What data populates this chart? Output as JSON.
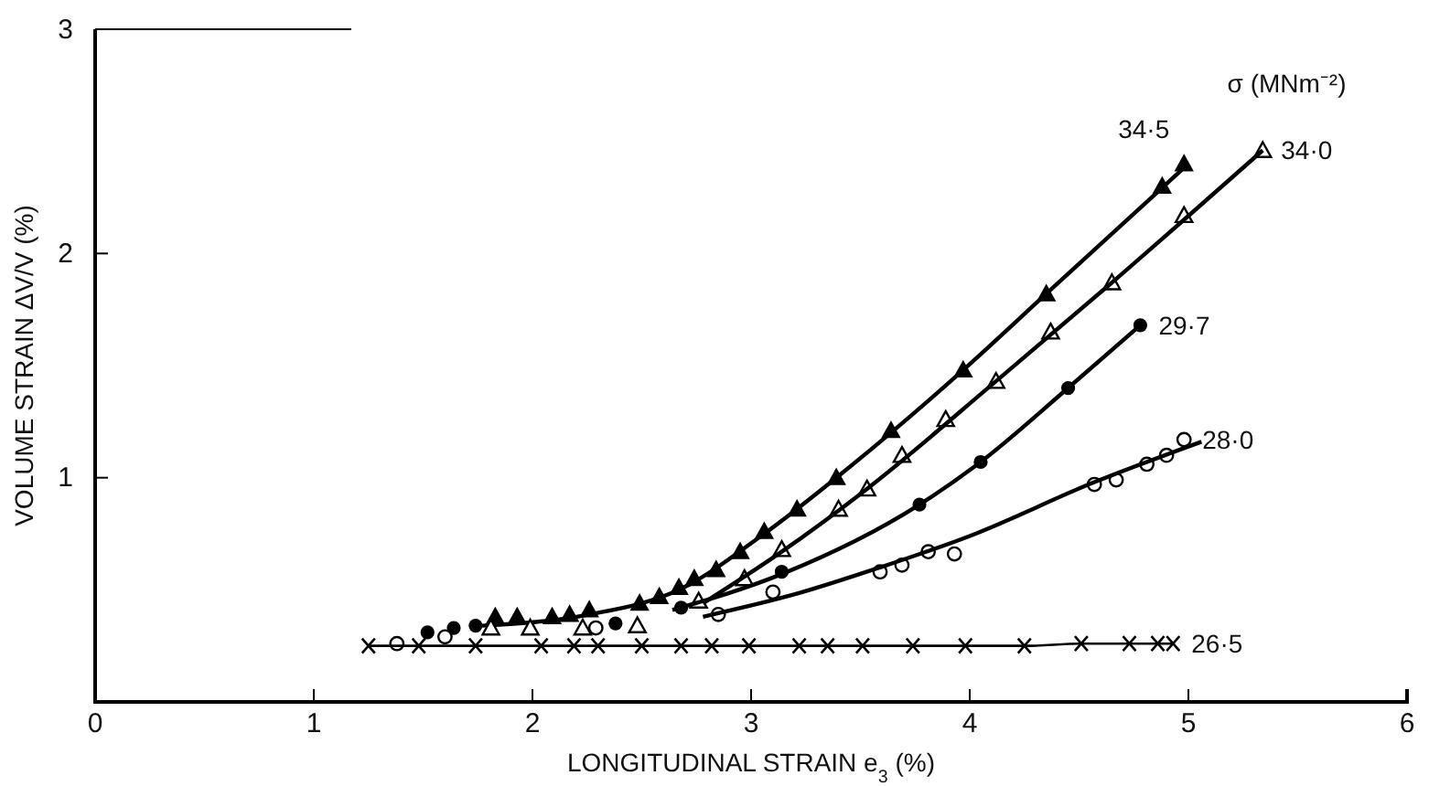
{
  "chart_data": {
    "type": "scatter",
    "xlabel": "LONGITUDINAL STRAIN e$_{3}$ (%)",
    "ylabel": "VOLUME STRAIN ΔV/V (%)",
    "legend_title": "σ (MNm⁻²)",
    "xlim": [
      0,
      6
    ],
    "xticks": [
      0,
      1,
      2,
      3,
      4,
      5,
      6
    ],
    "ylim": [
      0,
      3
    ],
    "yticks": [
      {
        "value": 0,
        "label": null
      },
      1,
      2,
      3
    ],
    "series": [
      {
        "name": "34·5",
        "marker": "triangle",
        "color": "#000000",
        "x": [
          1.83,
          1.93,
          2.09,
          2.17,
          2.26,
          2.49,
          2.58,
          2.67,
          2.74,
          2.84,
          2.95,
          3.06,
          3.21,
          3.39,
          3.64,
          3.97,
          4.35,
          4.88,
          4.98
        ],
        "values": [
          0.38,
          0.38,
          0.38,
          0.39,
          0.41,
          0.44,
          0.47,
          0.51,
          0.55,
          0.59,
          0.67,
          0.76,
          0.86,
          1.0,
          1.21,
          1.48,
          1.82,
          2.3,
          2.4
        ]
      },
      {
        "type": "line",
        "color": "#000000",
        "x": [
          1.77,
          2.26,
          2.67,
          3.06,
          3.39,
          3.97,
          4.35,
          5.0
        ],
        "values": [
          0.34,
          0.39,
          0.5,
          0.75,
          1.0,
          1.48,
          1.82,
          2.4
        ]
      },
      {
        "name": "34·0",
        "marker": "triangle-open",
        "color": "#000000",
        "x": [
          1.81,
          1.99,
          2.23,
          2.48,
          2.76,
          2.97,
          3.14,
          3.4,
          3.53,
          3.69,
          3.89,
          4.12,
          4.37,
          4.65,
          4.98,
          5.34
        ],
        "values": [
          0.33,
          0.33,
          0.33,
          0.34,
          0.45,
          0.55,
          0.68,
          0.86,
          0.95,
          1.1,
          1.26,
          1.43,
          1.65,
          1.87,
          2.17,
          2.46
        ]
      },
      {
        "type": "line",
        "color": "#000000",
        "x": [
          2.78,
          3.14,
          3.53,
          4.12,
          4.65,
          5.34
        ],
        "values": [
          0.44,
          0.67,
          0.95,
          1.43,
          1.87,
          2.46
        ]
      },
      {
        "name": "29·7",
        "marker": "circle",
        "color": "#000000",
        "x": [
          1.52,
          1.64,
          1.74,
          2.38,
          2.68,
          3.14,
          3.77,
          4.05,
          4.45,
          4.78
        ],
        "values": [
          0.31,
          0.33,
          0.34,
          0.35,
          0.42,
          0.58,
          0.88,
          1.07,
          1.4,
          1.68
        ]
      },
      {
        "type": "line",
        "color": "#000000",
        "x": [
          2.64,
          3.14,
          3.77,
          4.05,
          4.45,
          4.78
        ],
        "values": [
          0.41,
          0.57,
          0.88,
          1.07,
          1.4,
          1.68
        ]
      },
      {
        "name": "28·0",
        "marker": "circle-open",
        "color": "#000000",
        "x": [
          1.38,
          1.6,
          2.29,
          2.85,
          3.1,
          3.59,
          3.69,
          3.81,
          3.93,
          4.57,
          4.67,
          4.81,
          4.9,
          4.98
        ],
        "values": [
          0.26,
          0.29,
          0.33,
          0.39,
          0.49,
          0.58,
          0.61,
          0.67,
          0.66,
          0.97,
          0.99,
          1.06,
          1.1,
          1.17
        ]
      },
      {
        "type": "line",
        "color": "#000000",
        "x": [
          2.78,
          3.2,
          3.59,
          4.0,
          4.57,
          5.06
        ],
        "values": [
          0.38,
          0.48,
          0.6,
          0.74,
          0.98,
          1.16
        ]
      },
      {
        "name": "26·5",
        "type": "line",
        "marker": "cross",
        "color": "#000000",
        "x": [
          1.25,
          1.48,
          1.74,
          2.04,
          2.19,
          2.3,
          2.5,
          2.68,
          2.82,
          2.99,
          3.22,
          3.35,
          3.51,
          3.74,
          3.98,
          4.25,
          4.51,
          4.73,
          4.86,
          4.93
        ],
        "values": [
          0.25,
          0.25,
          0.25,
          0.25,
          0.25,
          0.25,
          0.25,
          0.25,
          0.25,
          0.25,
          0.25,
          0.25,
          0.25,
          0.25,
          0.25,
          0.25,
          0.26,
          0.26,
          0.26,
          0.26
        ]
      }
    ]
  }
}
